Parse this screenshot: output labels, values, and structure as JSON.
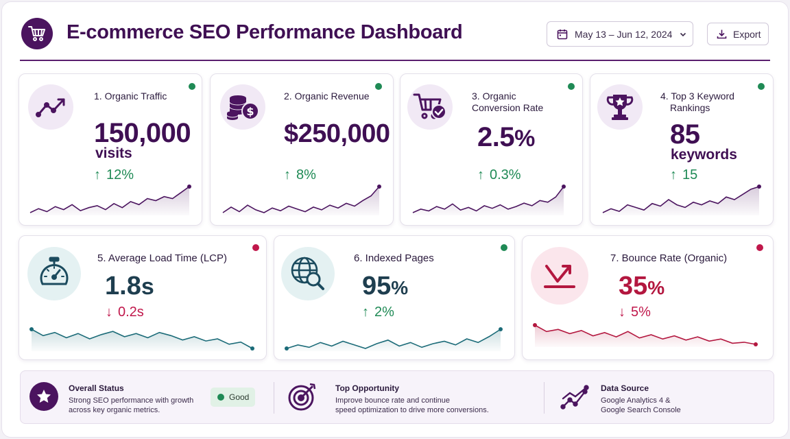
{
  "header": {
    "title": "E-commerce SEO Performance Dashboard",
    "date_range": "May 13 – Jun 12, 2024",
    "export_label": "Export"
  },
  "metrics": [
    {
      "title_line1": "1. Organic Traffic",
      "title_line2": "",
      "value": "150,000",
      "unit": "visits",
      "delta": "12%",
      "direction": "up",
      "status": "good",
      "icon": "trend-up-icon",
      "trend": [
        10,
        14,
        11,
        16,
        13,
        18,
        12,
        15,
        17,
        13,
        19,
        15,
        21,
        18,
        24,
        22,
        26,
        24,
        30,
        36
      ]
    },
    {
      "title_line1": "2. Organic Revenue",
      "title_line2": "",
      "value": "$250,000",
      "unit": "",
      "delta": "8%",
      "direction": "up",
      "status": "good",
      "icon": "coins-icon",
      "trend": [
        12,
        18,
        13,
        20,
        15,
        12,
        17,
        14,
        19,
        16,
        13,
        18,
        15,
        20,
        17,
        22,
        19,
        25,
        30,
        40
      ]
    },
    {
      "title_line1": "3. Organic",
      "title_line2": "Conversion Rate",
      "value": "2.5",
      "unit": "%",
      "delta": "0.3%",
      "direction": "up",
      "status": "good",
      "icon": "cart-check-icon",
      "trend": [
        10,
        14,
        12,
        17,
        14,
        20,
        13,
        16,
        12,
        18,
        15,
        19,
        14,
        17,
        21,
        18,
        24,
        22,
        28,
        40
      ]
    },
    {
      "title_line1": "4. Top 3 Keyword",
      "title_line2": "Rankings",
      "value": "85",
      "unit": "keywords",
      "delta": "15",
      "direction": "up",
      "status": "good",
      "icon": "trophy-icon",
      "trend": [
        10,
        13,
        11,
        16,
        14,
        12,
        17,
        15,
        20,
        16,
        14,
        18,
        16,
        19,
        17,
        22,
        20,
        24,
        28,
        30
      ]
    },
    {
      "title_line1": "5. Average Load Time (LCP)",
      "title_line2": "",
      "value": "1.8",
      "unit": "s",
      "delta": "0.2s",
      "direction": "down",
      "status": "bad",
      "icon": "stopwatch-icon",
      "trend": [
        30,
        24,
        27,
        22,
        26,
        21,
        25,
        28,
        23,
        26,
        22,
        27,
        24,
        20,
        23,
        19,
        21,
        16,
        18,
        12
      ]
    },
    {
      "title_line1": "6. Indexed Pages",
      "title_line2": "",
      "value": "95",
      "unit": "%",
      "delta": "2%",
      "direction": "up",
      "status": "good",
      "icon": "globe-search-icon",
      "trend": [
        14,
        17,
        15,
        19,
        16,
        20,
        17,
        14,
        18,
        21,
        16,
        19,
        15,
        18,
        20,
        17,
        22,
        19,
        24,
        30
      ]
    },
    {
      "title_line1": "7. Bounce Rate (Organic)",
      "title_line2": "",
      "value": "35",
      "unit": "%",
      "delta": "5%",
      "direction": "down",
      "status": "bad",
      "icon": "bounce-arrow-icon",
      "trend": [
        32,
        26,
        28,
        24,
        27,
        22,
        25,
        21,
        26,
        20,
        23,
        19,
        22,
        18,
        21,
        17,
        19,
        15,
        16,
        14
      ]
    }
  ],
  "colors": {
    "good": "#1f8a55",
    "bad": "#c0174b",
    "purple": "#4b145f",
    "teal": "#1b6b78",
    "crimson": "#b3173f"
  },
  "footer": {
    "status": {
      "title": "Overall Status",
      "line1": "Strong SEO performance with growth",
      "line2": "across key organic metrics.",
      "badge": "Good"
    },
    "opportunity": {
      "title": "Top Opportunity",
      "line1": "Improve bounce rate and continue",
      "line2": "speed optimization to drive more conversions."
    },
    "source": {
      "title": "Data Source",
      "line1": "Google Analytics 4 &",
      "line2": "Google Search Console"
    }
  }
}
